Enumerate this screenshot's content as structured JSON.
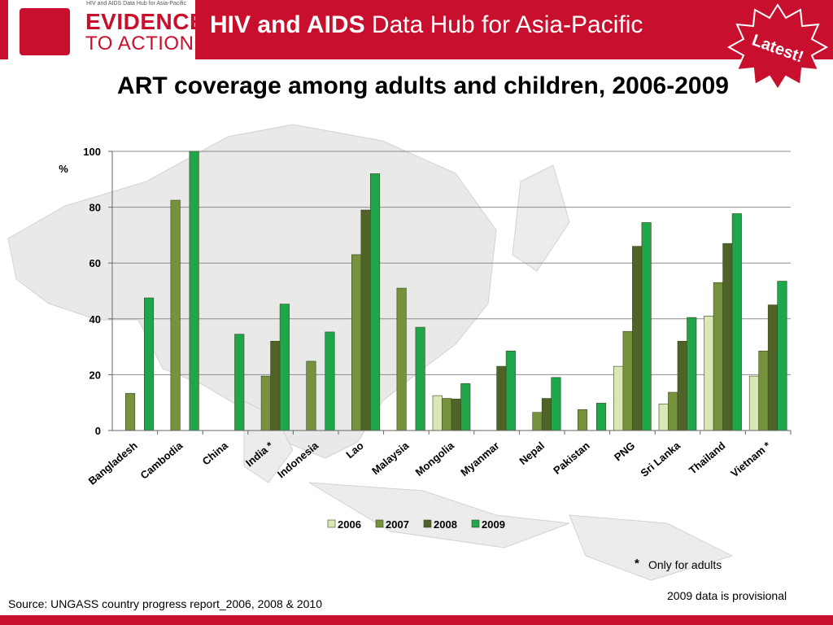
{
  "header": {
    "logo_subtitle": "HIV and AIDS Data Hub for Asia-Pacific",
    "logo_line1": "EVIDENCE",
    "logo_line2": "TO ACTION",
    "title_bold": "HIV and AIDS",
    "title_rest": "Data Hub for Asia-Pacific"
  },
  "badge": {
    "label": "Latest!"
  },
  "chart_data": {
    "type": "bar",
    "title": "ART  coverage among  adults and children, 2006-2009",
    "ylabel": "%",
    "ylim": [
      0,
      100
    ],
    "yticks": [
      0,
      20,
      40,
      60,
      80,
      100
    ],
    "grid": true,
    "legend_position": "bottom",
    "categories": [
      "Bangladesh",
      "Cambodia",
      "China",
      "India *",
      "Indonesia",
      "Lao",
      "Malaysia",
      "Mongolia",
      "Myanmar",
      "Nepal",
      "Pakistan",
      "PNG",
      "Sri Lanka",
      "Thailand",
      "Vietnam *"
    ],
    "series": [
      {
        "name": "2006",
        "color": "#d9e8b4",
        "values": [
          null,
          null,
          null,
          null,
          null,
          null,
          null,
          12.5,
          null,
          null,
          null,
          23,
          9.5,
          41,
          19.5
        ]
      },
      {
        "name": "2007",
        "color": "#76923c",
        "values": [
          13.3,
          82.5,
          null,
          19.5,
          24.8,
          63,
          51,
          11.5,
          null,
          6.5,
          7.5,
          35.5,
          13.7,
          53,
          28.5
        ]
      },
      {
        "name": "2008",
        "color": "#4f6228",
        "values": [
          null,
          null,
          null,
          32,
          null,
          79,
          null,
          11.3,
          23,
          11.5,
          null,
          66,
          32,
          67,
          45
        ]
      },
      {
        "name": "2009",
        "color": "#1fa64a",
        "values": [
          47.5,
          100,
          34.5,
          45.3,
          35.3,
          92,
          37,
          16.8,
          28.5,
          19,
          9.8,
          74.5,
          40.5,
          77.7,
          53.5
        ]
      }
    ]
  },
  "footnotes": {
    "star": "*",
    "adults_only": "Only for adults",
    "provisional": "2009 data is provisional",
    "source": "Source: UNGASS country progress report_2006, 2008 & 2010"
  }
}
